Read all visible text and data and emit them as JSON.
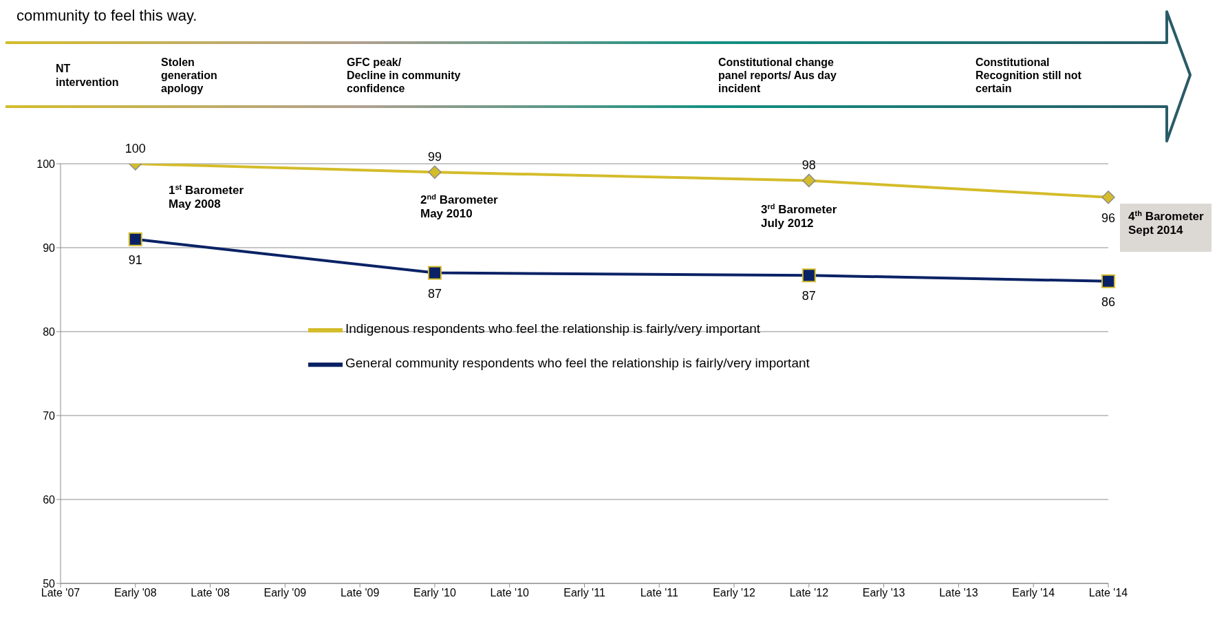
{
  "chart_data": {
    "type": "line",
    "subtitle": "community to feel this way.",
    "categories": [
      "Late '07",
      "Early '08",
      "Late '08",
      "Early '09",
      "Late '09",
      "Early '10",
      "Late '10",
      "Early '11",
      "Late '11",
      "Early '12",
      "Late '12",
      "Early '13",
      "Late '13",
      "Early '14",
      "Late '14"
    ],
    "series": [
      {
        "name": "Indigenous respondents who feel the relationship is fairly/very important",
        "color": "#d4bc2a",
        "marker": "diamond",
        "values": [
          null,
          100,
          null,
          null,
          null,
          99,
          null,
          null,
          null,
          null,
          98,
          null,
          null,
          null,
          96
        ],
        "value_labels": [
          null,
          "100",
          null,
          null,
          null,
          "99",
          null,
          null,
          null,
          null,
          "98",
          null,
          null,
          null,
          "96"
        ]
      },
      {
        "name": "General community respondents who feel the relationship is fairly/very important",
        "color": "#0a2265",
        "marker": "square",
        "values": [
          null,
          91,
          null,
          null,
          null,
          87,
          null,
          null,
          null,
          null,
          86.7,
          null,
          null,
          null,
          86
        ],
        "value_labels": [
          null,
          "91",
          null,
          null,
          null,
          "87",
          null,
          null,
          null,
          null,
          "87",
          null,
          null,
          null,
          "86"
        ]
      }
    ],
    "ylim": [
      50,
      100
    ],
    "yticks": [
      50,
      60,
      70,
      80,
      90,
      100
    ],
    "grid": "y",
    "legend": "center",
    "line_style": "solid",
    "annotations": [
      "NT\nintervention",
      "Stolen\ngeneration\napology",
      "GFC peak/\nDecline in community\nconfidence",
      "Constitutional change\npanel reports/ Aus day\nincident",
      "Constitutional\nRecognition still not\ncertain",
      "1$^{st}$ Barometer\nMay 2008",
      "2$^{nd}$ Barometer\nMay 2010",
      "3$^{rd}$ Barometer\nJuly 2012",
      "4$^{th}$  Barometer\nSept 2014"
    ]
  }
}
